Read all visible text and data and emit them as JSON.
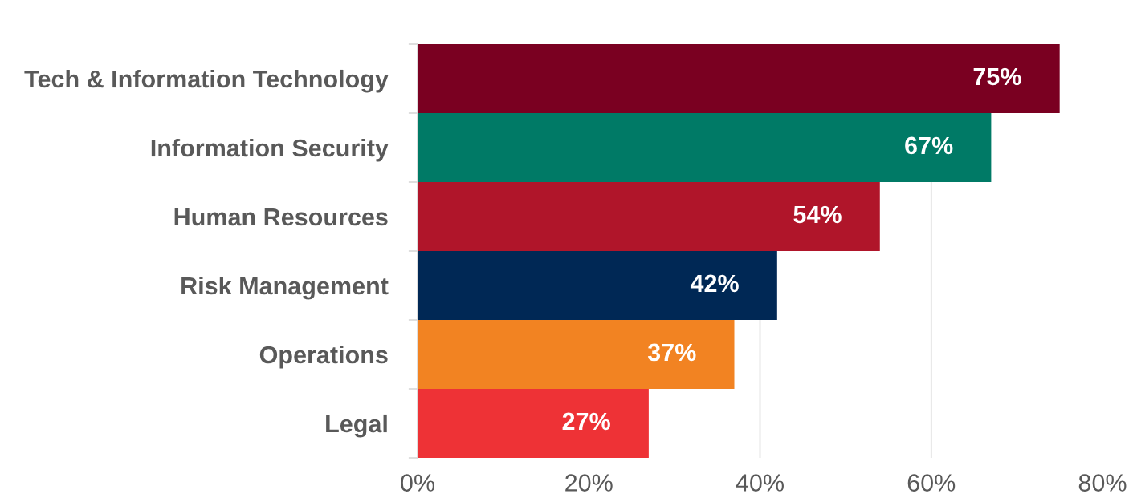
{
  "chart_data": {
    "type": "bar",
    "orientation": "horizontal",
    "categories": [
      "Tech & Information Technology",
      "Information Security",
      "Human Resources",
      "Risk Management",
      "Operations",
      "Legal"
    ],
    "values": [
      75,
      67,
      54,
      42,
      37,
      27
    ],
    "colors": [
      "#7a0021",
      "#007a66",
      "#b0152a",
      "#002855",
      "#f28322",
      "#ee3236"
    ],
    "value_labels": [
      "75%",
      "67%",
      "54%",
      "42%",
      "37%",
      "27%"
    ],
    "xlim": [
      0,
      80
    ],
    "xticks": [
      {
        "value": 0,
        "label": "0%"
      },
      {
        "value": 20,
        "label": "20%"
      },
      {
        "value": 40,
        "label": "40%"
      },
      {
        "value": 60,
        "label": "60%"
      },
      {
        "value": 80,
        "label": "80%"
      }
    ],
    "grid": "x",
    "legend": false
  }
}
